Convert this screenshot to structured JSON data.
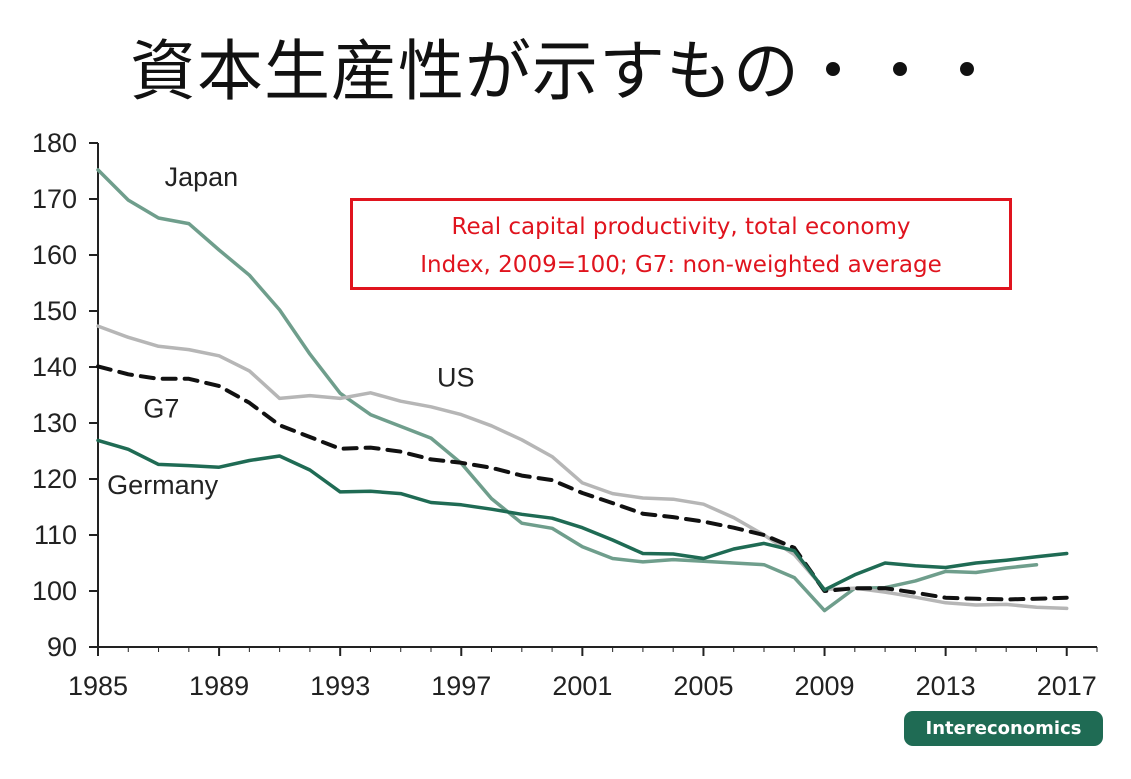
{
  "slide_title": "資本生産性が示すもの・・・",
  "colors": {
    "japan": "#6f9e8c",
    "us": "#b6b6b6",
    "g7": "#111111",
    "germany": "#1f6b54",
    "annotation": "#e0141e",
    "source_badge": "#1f6b54"
  },
  "chart_data": {
    "type": "line",
    "title": "Real capital productivity, total economy",
    "subtitle": "Index, 2009=100; G7: non-weighted average",
    "xlabel": "",
    "ylabel": "",
    "xlim": [
      1985,
      2018
    ],
    "ylim": [
      90,
      180
    ],
    "x_ticks": [
      1985,
      1989,
      1993,
      1997,
      2001,
      2005,
      2009,
      2013,
      2017
    ],
    "y_ticks": [
      90,
      100,
      110,
      120,
      130,
      140,
      150,
      160,
      170,
      180
    ],
    "grid": false,
    "legend": "inline labels",
    "source": "Intereconomics",
    "x": [
      1985,
      1986,
      1987,
      1988,
      1989,
      1990,
      1991,
      1992,
      1993,
      1994,
      1995,
      1996,
      1997,
      1998,
      1999,
      2000,
      2001,
      2002,
      2003,
      2004,
      2005,
      2006,
      2007,
      2008,
      2009,
      2010,
      2011,
      2012,
      2013,
      2014,
      2015,
      2016,
      2017
    ],
    "series": [
      {
        "name": "Japan",
        "style": "solid",
        "values": [
          175.2,
          169.8,
          166.6,
          165.6,
          160.9,
          156.4,
          150.2,
          142.3,
          135.3,
          131.5,
          129.4,
          127.3,
          122.8,
          116.5,
          112.1,
          111.2,
          107.9,
          105.8,
          105.2,
          105.6,
          105.3,
          105.0,
          104.7,
          102.4,
          96.5,
          100.5,
          100.6,
          101.8,
          103.5,
          103.3,
          104.1,
          104.7,
          null
        ]
      },
      {
        "name": "US",
        "style": "solid",
        "values": [
          147.3,
          145.3,
          143.7,
          143.1,
          142.0,
          139.3,
          134.4,
          134.9,
          134.4,
          135.4,
          133.9,
          132.9,
          131.5,
          129.5,
          127.0,
          124.0,
          119.3,
          117.4,
          116.6,
          116.4,
          115.5,
          113.1,
          110.0,
          106.5,
          100.3,
          100.5,
          99.8,
          98.9,
          97.9,
          97.5,
          97.6,
          97.1,
          96.9
        ]
      },
      {
        "name": "G7",
        "style": "dashed",
        "values": [
          140.1,
          138.7,
          137.9,
          137.9,
          136.6,
          133.6,
          129.6,
          127.5,
          125.4,
          125.6,
          124.9,
          123.5,
          122.9,
          122.0,
          120.6,
          119.8,
          117.5,
          115.7,
          113.8,
          113.2,
          112.4,
          111.3,
          110.0,
          107.7,
          100.0,
          100.5,
          100.5,
          99.7,
          98.8,
          98.6,
          98.5,
          98.6,
          98.8
        ]
      },
      {
        "name": "Germany",
        "style": "solid",
        "values": [
          126.9,
          125.3,
          122.6,
          122.4,
          122.1,
          123.3,
          124.1,
          121.6,
          117.7,
          117.8,
          117.4,
          115.8,
          115.4,
          114.6,
          113.7,
          113.0,
          111.3,
          109.1,
          106.7,
          106.6,
          105.8,
          107.5,
          108.5,
          107.2,
          100.2,
          102.9,
          105.0,
          104.5,
          104.2,
          105.0,
          105.5,
          106.1,
          106.7
        ]
      }
    ],
    "series_label_positions": {
      "Japan": [
        1987.2,
        172.3
      ],
      "US": [
        1996.2,
        136.5
      ],
      "G7": [
        1986.5,
        131.0
      ],
      "Germany": [
        1985.3,
        117.3
      ]
    }
  }
}
